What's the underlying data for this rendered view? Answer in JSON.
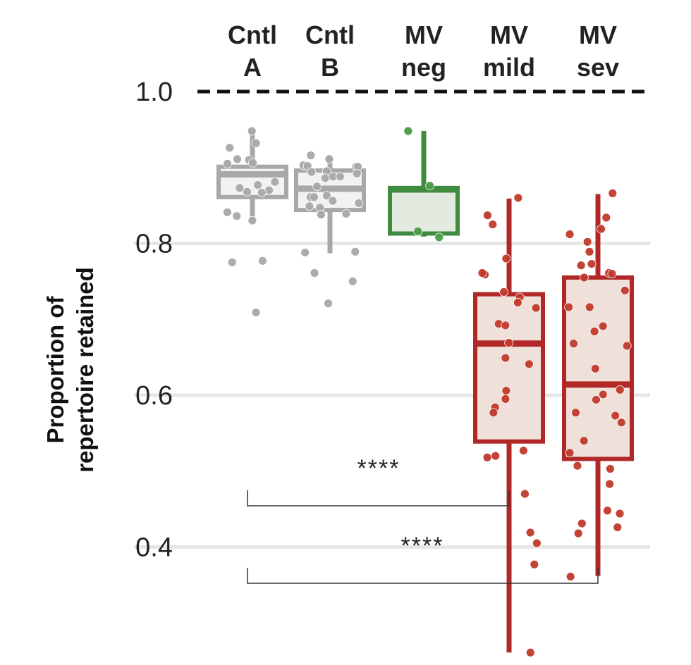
{
  "chart_data": {
    "type": "box",
    "title": "",
    "xlabel": "",
    "ylabel": [
      "Proportion of",
      "repertoire retained"
    ],
    "ylim": [
      0.25,
      1.0
    ],
    "yticks": [
      0.4,
      0.6,
      0.8,
      1.0
    ],
    "ytick_labels": [
      "0.4",
      "0.6",
      "0.8",
      "1.0"
    ],
    "grid": "horizontal",
    "reference_line": {
      "y": 1.0,
      "style": "dashed"
    },
    "categories": [
      {
        "label": [
          "Cntl",
          "A"
        ],
        "color": "#a8a8a8",
        "fill": "#f3f2f0",
        "point_color": "#a8a8a8",
        "q1": 0.861,
        "median": 0.891,
        "q3": 0.901,
        "whisker_low": 0.831,
        "whisker_high": 0.948,
        "points": [
          0.948,
          0.932,
          0.926,
          0.911,
          0.91,
          0.906,
          0.905,
          0.881,
          0.877,
          0.868,
          0.873,
          0.87,
          0.867,
          0.841,
          0.83,
          0.836,
          0.777,
          0.775,
          0.709
        ]
      },
      {
        "label": [
          "Cntl",
          "B"
        ],
        "color": "#a8a8a8",
        "fill": "#f3f2f0",
        "point_color": "#a8a8a8",
        "q1": 0.844,
        "median": 0.872,
        "q3": 0.896,
        "whisker_low": 0.787,
        "whisker_high": 0.915,
        "points": [
          0.911,
          0.916,
          0.903,
          0.901,
          0.901,
          0.902,
          0.895,
          0.892,
          0.894,
          0.886,
          0.888,
          0.888,
          0.875,
          0.861,
          0.853,
          0.863,
          0.861,
          0.856,
          0.847,
          0.849,
          0.839,
          0.838,
          0.838,
          0.788,
          0.789,
          0.761,
          0.75,
          0.721
        ]
      },
      {
        "label": [
          "MV",
          "neg"
        ],
        "color": "#3f8c3f",
        "fill": "#e3ebe1",
        "point_color": "#4a9a47",
        "q1": 0.813,
        "median": 0.871,
        "q3": 0.873,
        "whisker_low": 0.809,
        "whisker_high": 0.948,
        "points": [
          0.948,
          0.876,
          0.816,
          0.808
        ]
      },
      {
        "label": [
          "MV",
          "mild"
        ],
        "color": "#b22727",
        "fill": "#efe0d9",
        "point_color": "#c0392b",
        "q1": 0.539,
        "median": 0.668,
        "q3": 0.733,
        "whisker_low": 0.261,
        "whisker_high": 0.859,
        "points": [
          0.86,
          0.837,
          0.825,
          0.78,
          0.759,
          0.761,
          0.736,
          0.729,
          0.722,
          0.715,
          0.694,
          0.692,
          0.669,
          0.649,
          0.641,
          0.606,
          0.595,
          0.584,
          0.577,
          0.527,
          0.518,
          0.52,
          0.47,
          0.419,
          0.405,
          0.377,
          0.261
        ]
      },
      {
        "label": [
          "MV",
          "sev"
        ],
        "color": "#b22727",
        "fill": "#efe0d9",
        "point_color": "#c0392b",
        "q1": 0.516,
        "median": 0.614,
        "q3": 0.755,
        "whisker_low": 0.362,
        "whisker_high": 0.865,
        "points": [
          0.866,
          0.834,
          0.819,
          0.812,
          0.802,
          0.789,
          0.771,
          0.773,
          0.761,
          0.76,
          0.755,
          0.738,
          0.716,
          0.716,
          0.691,
          0.684,
          0.668,
          0.665,
          0.635,
          0.607,
          0.601,
          0.594,
          0.577,
          0.573,
          0.564,
          0.54,
          0.524,
          0.507,
          0.503,
          0.483,
          0.448,
          0.444,
          0.431,
          0.426,
          0.418,
          0.361
        ]
      }
    ],
    "annotations": [
      {
        "from": 0,
        "to": 3,
        "label": "****"
      },
      {
        "from": 0,
        "to": 4,
        "label": "****"
      }
    ]
  }
}
